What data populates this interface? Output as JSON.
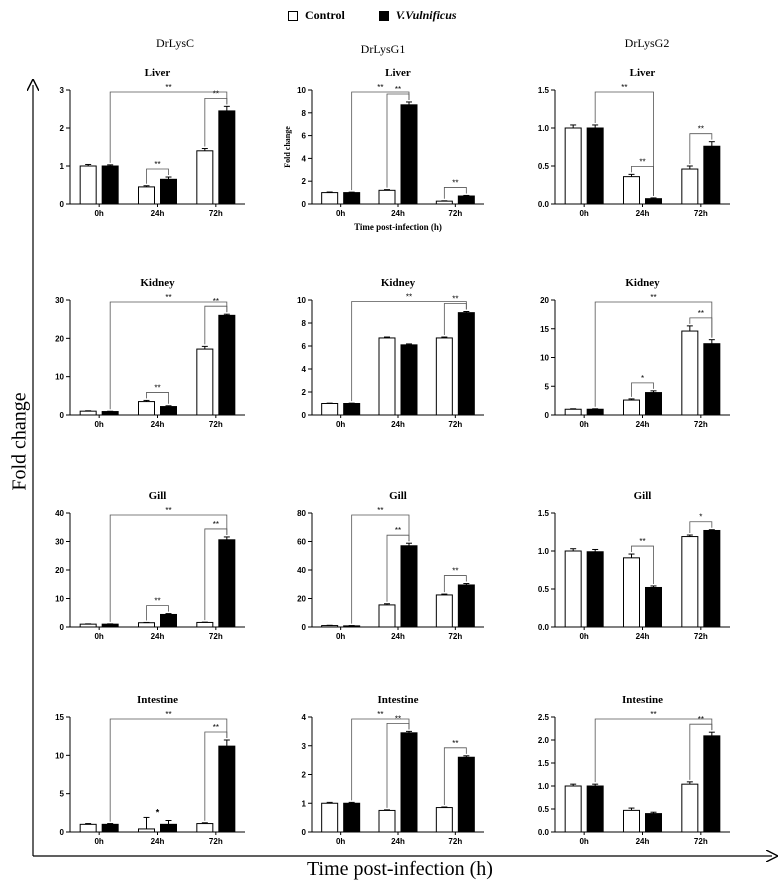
{
  "legend": {
    "control_label": "Control",
    "treated_label": "V.Vulnificus"
  },
  "columns": [
    "DrLysC",
    "DrLysG1",
    "DrLysG2"
  ],
  "global_ylabel": "Fold change",
  "global_xlabel": "Time post-infection (h)",
  "colors": {
    "control": "#ffffff",
    "treated": "#000000",
    "axis": "#000000"
  },
  "chart_data": [
    {
      "type": "bar",
      "gene": "DrLysC",
      "title": "Liver",
      "categories": [
        "0h",
        "24h",
        "72h"
      ],
      "series": [
        {
          "name": "Control",
          "values": [
            1.0,
            0.45,
            1.4
          ],
          "errors": [
            0.04,
            0.03,
            0.06
          ]
        },
        {
          "name": "V.Vulnificus",
          "values": [
            1.0,
            0.65,
            2.45
          ],
          "errors": [
            0.03,
            0.06,
            0.12
          ]
        }
      ],
      "ylim": [
        0,
        3
      ],
      "yticks": [
        0,
        1,
        2,
        3
      ],
      "significance": [
        {
          "from": "treated_0",
          "to": "treated_2",
          "label": "**"
        },
        {
          "from": "control_1",
          "to": "treated_1",
          "label": "**"
        },
        {
          "from": "control_2",
          "to": "treated_2",
          "label": "**"
        }
      ],
      "xlabel": "",
      "ylabel": ""
    },
    {
      "type": "bar",
      "gene": "DrLysG1",
      "title": "Liver",
      "categories": [
        "0h",
        "24h",
        "72h"
      ],
      "series": [
        {
          "name": "Control",
          "values": [
            1.0,
            1.2,
            0.25
          ],
          "errors": [
            0.05,
            0.06,
            0.03
          ]
        },
        {
          "name": "V.Vulnificus",
          "values": [
            1.0,
            8.7,
            0.7
          ],
          "errors": [
            0.04,
            0.25,
            0.05
          ]
        }
      ],
      "ylim": [
        0,
        10
      ],
      "yticks": [
        0,
        2,
        4,
        6,
        8,
        10
      ],
      "significance": [
        {
          "from": "treated_0",
          "to": "treated_1",
          "label": "**"
        },
        {
          "from": "control_1",
          "to": "treated_1",
          "label": "**"
        },
        {
          "from": "control_2",
          "to": "treated_2",
          "label": "**"
        }
      ],
      "xlabel": "Time post-infection (h)",
      "ylabel": "Fold change"
    },
    {
      "type": "bar",
      "gene": "DrLysG2",
      "title": "Liver",
      "categories": [
        "0h",
        "24h",
        "72h"
      ],
      "series": [
        {
          "name": "Control",
          "values": [
            1.0,
            0.36,
            0.46
          ],
          "errors": [
            0.04,
            0.03,
            0.04
          ]
        },
        {
          "name": "V.Vulnificus",
          "values": [
            1.0,
            0.07,
            0.76
          ],
          "errors": [
            0.04,
            0.01,
            0.06
          ]
        }
      ],
      "ylim": [
        0,
        1.5
      ],
      "yticks": [
        0,
        0.5,
        1.0,
        1.5
      ],
      "significance": [
        {
          "from": "treated_0",
          "to": "treated_1",
          "label": "**"
        },
        {
          "from": "control_1",
          "to": "treated_1",
          "label": "**"
        },
        {
          "from": "control_2",
          "to": "treated_2",
          "label": "**"
        }
      ],
      "xlabel": "",
      "ylabel": ""
    },
    {
      "type": "bar",
      "gene": "DrLysC",
      "title": "Kidney",
      "categories": [
        "0h",
        "24h",
        "72h"
      ],
      "series": [
        {
          "name": "Control",
          "values": [
            1.0,
            3.5,
            17.2
          ],
          "errors": [
            0.1,
            0.3,
            0.7
          ]
        },
        {
          "name": "V.Vulnificus",
          "values": [
            0.9,
            2.2,
            26.0
          ],
          "errors": [
            0.08,
            0.2,
            0.3
          ]
        }
      ],
      "ylim": [
        0,
        30
      ],
      "yticks": [
        0,
        10,
        20,
        30
      ],
      "significance": [
        {
          "from": "treated_0",
          "to": "treated_2",
          "label": "**"
        },
        {
          "from": "control_1",
          "to": "treated_1",
          "label": "**"
        },
        {
          "from": "control_2",
          "to": "treated_2",
          "label": "**"
        }
      ],
      "xlabel": "",
      "ylabel": ""
    },
    {
      "type": "bar",
      "gene": "DrLysG1",
      "title": "Kidney",
      "categories": [
        "0h",
        "24h",
        "72h"
      ],
      "series": [
        {
          "name": "Control",
          "values": [
            1.0,
            6.7,
            6.7
          ],
          "errors": [
            0.03,
            0.08,
            0.08
          ]
        },
        {
          "name": "V.Vulnificus",
          "values": [
            1.0,
            6.1,
            8.9
          ],
          "errors": [
            0.03,
            0.08,
            0.1
          ]
        }
      ],
      "ylim": [
        0,
        10
      ],
      "yticks": [
        0,
        2,
        4,
        6,
        8,
        10
      ],
      "significance": [
        {
          "from": "treated_0",
          "to": "treated_2",
          "label": "**"
        },
        {
          "from": "control_2",
          "to": "treated_2",
          "label": "**"
        }
      ],
      "xlabel": "",
      "ylabel": ""
    },
    {
      "type": "bar",
      "gene": "DrLysG2",
      "title": "Kidney",
      "categories": [
        "0h",
        "24h",
        "72h"
      ],
      "series": [
        {
          "name": "Control",
          "values": [
            1.0,
            2.6,
            14.6
          ],
          "errors": [
            0.08,
            0.2,
            0.9
          ]
        },
        {
          "name": "V.Vulnificus",
          "values": [
            1.0,
            3.9,
            12.4
          ],
          "errors": [
            0.08,
            0.3,
            0.7
          ]
        }
      ],
      "ylim": [
        0,
        20
      ],
      "yticks": [
        0,
        5,
        10,
        15,
        20
      ],
      "significance": [
        {
          "from": "treated_0",
          "to": "treated_2",
          "label": "**"
        },
        {
          "from": "control_1",
          "to": "treated_1",
          "label": "*"
        },
        {
          "from": "control_2",
          "to": "treated_2",
          "label": "**"
        }
      ],
      "xlabel": "",
      "ylabel": ""
    },
    {
      "type": "bar",
      "gene": "DrLysC",
      "title": "Gill",
      "categories": [
        "0h",
        "24h",
        "72h"
      ],
      "series": [
        {
          "name": "Control",
          "values": [
            1.0,
            1.5,
            1.6
          ],
          "errors": [
            0.1,
            0.1,
            0.1
          ]
        },
        {
          "name": "V.Vulnificus",
          "values": [
            1.0,
            4.4,
            30.6
          ],
          "errors": [
            0.1,
            0.3,
            1.0
          ]
        }
      ],
      "ylim": [
        0,
        40
      ],
      "yticks": [
        0,
        10,
        20,
        30,
        40
      ],
      "significance": [
        {
          "from": "treated_0",
          "to": "treated_2",
          "label": "**"
        },
        {
          "from": "control_1",
          "to": "treated_1",
          "label": "**"
        },
        {
          "from": "control_2",
          "to": "treated_2",
          "label": "**"
        }
      ],
      "xlabel": "",
      "ylabel": ""
    },
    {
      "type": "bar",
      "gene": "DrLysG1",
      "title": "Gill",
      "categories": [
        "0h",
        "24h",
        "72h"
      ],
      "series": [
        {
          "name": "Control",
          "values": [
            1.0,
            15.5,
            22.5
          ],
          "errors": [
            0.2,
            0.8,
            0.6
          ]
        },
        {
          "name": "V.Vulnificus",
          "values": [
            0.8,
            57.0,
            29.5
          ],
          "errors": [
            0.2,
            1.8,
            1.0
          ]
        }
      ],
      "ylim": [
        0,
        80
      ],
      "yticks": [
        0,
        20,
        40,
        60,
        80
      ],
      "significance": [
        {
          "from": "treated_0",
          "to": "treated_1",
          "label": "**"
        },
        {
          "from": "control_1",
          "to": "treated_1",
          "label": "**"
        },
        {
          "from": "control_2",
          "to": "treated_2",
          "label": "**"
        }
      ],
      "xlabel": "",
      "ylabel": ""
    },
    {
      "type": "bar",
      "gene": "DrLysG2",
      "title": "Gill",
      "categories": [
        "0h",
        "24h",
        "72h"
      ],
      "series": [
        {
          "name": "Control",
          "values": [
            1.0,
            0.91,
            1.19
          ],
          "errors": [
            0.03,
            0.05,
            0.02
          ]
        },
        {
          "name": "V.Vulnificus",
          "values": [
            0.99,
            0.52,
            1.27
          ],
          "errors": [
            0.03,
            0.02,
            0.01
          ]
        }
      ],
      "ylim": [
        0,
        1.5
      ],
      "yticks": [
        0,
        0.5,
        1.0,
        1.5
      ],
      "significance": [
        {
          "from": "control_1",
          "to": "treated_1",
          "label": "**"
        },
        {
          "from": "control_2",
          "to": "treated_2",
          "label": "*"
        }
      ],
      "xlabel": "",
      "ylabel": ""
    },
    {
      "type": "bar",
      "gene": "DrLysC",
      "title": "Intestine",
      "categories": [
        "0h",
        "24h",
        "72h"
      ],
      "series": [
        {
          "name": "Control",
          "values": [
            1.0,
            0.4,
            1.1
          ],
          "errors": [
            0.1,
            1.5,
            0.1
          ]
        },
        {
          "name": "V.Vulnificus",
          "values": [
            1.0,
            1.0,
            11.2
          ],
          "errors": [
            0.1,
            0.5,
            0.8
          ]
        }
      ],
      "ylim": [
        0,
        15
      ],
      "yticks": [
        0,
        5,
        10,
        15
      ],
      "significance": [
        {
          "from": "treated_0",
          "to": "treated_2",
          "label": "**"
        },
        {
          "from": "control_1",
          "to": "treated_1",
          "label": "*",
          "bracket": false
        },
        {
          "from": "control_2",
          "to": "treated_2",
          "label": "**"
        }
      ],
      "xlabel": "",
      "ylabel": ""
    },
    {
      "type": "bar",
      "gene": "DrLysG1",
      "title": "Intestine",
      "categories": [
        "0h",
        "24h",
        "72h"
      ],
      "series": [
        {
          "name": "Control",
          "values": [
            1.0,
            0.75,
            0.85
          ],
          "errors": [
            0.03,
            0.02,
            0.02
          ]
        },
        {
          "name": "V.Vulnificus",
          "values": [
            1.0,
            3.45,
            2.6
          ],
          "errors": [
            0.03,
            0.05,
            0.05
          ]
        }
      ],
      "ylim": [
        0,
        4
      ],
      "yticks": [
        0,
        1,
        2,
        3,
        4
      ],
      "significance": [
        {
          "from": "treated_0",
          "to": "treated_1",
          "label": "**"
        },
        {
          "from": "control_1",
          "to": "treated_1",
          "label": "**"
        },
        {
          "from": "control_2",
          "to": "treated_2",
          "label": "**"
        }
      ],
      "xlabel": "",
      "ylabel": ""
    },
    {
      "type": "bar",
      "gene": "DrLysG2",
      "title": "Intestine",
      "categories": [
        "0h",
        "24h",
        "72h"
      ],
      "series": [
        {
          "name": "Control",
          "values": [
            1.0,
            0.47,
            1.04
          ],
          "errors": [
            0.04,
            0.05,
            0.05
          ]
        },
        {
          "name": "V.Vulnificus",
          "values": [
            1.0,
            0.4,
            2.09
          ],
          "errors": [
            0.04,
            0.03,
            0.08
          ]
        }
      ],
      "ylim": [
        0,
        2.5
      ],
      "yticks": [
        0,
        0.5,
        1.0,
        1.5,
        2.0,
        2.5
      ],
      "significance": [
        {
          "from": "treated_0",
          "to": "treated_2",
          "label": "**"
        },
        {
          "from": "control_2",
          "to": "treated_2",
          "label": "**"
        }
      ],
      "xlabel": "",
      "ylabel": ""
    }
  ]
}
